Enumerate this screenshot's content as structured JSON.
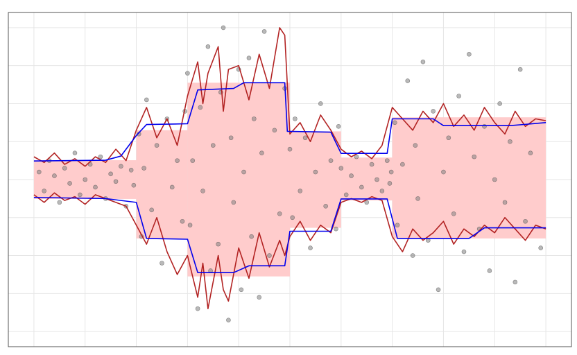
{
  "chart_data": {
    "type": "scatter",
    "xlim": [
      -0.05,
      1.05
    ],
    "xticks": [
      0,
      0.1,
      0.2,
      0.3,
      0.4,
      0.5,
      0.6,
      0.7,
      0.8,
      0.9,
      1
    ],
    "ylim": [
      -4.4,
      4.4
    ],
    "yticks": [
      -4,
      -3,
      -2,
      -1,
      0,
      1,
      2,
      3,
      4
    ],
    "grid": true,
    "color": "#808080",
    "band_color": "#ffcccc",
    "bands": [
      {
        "x": [
          0,
          0.2
        ],
        "lower": -0.51,
        "upper": 0.51
      },
      {
        "x": [
          0.2,
          0.3
        ],
        "lower": -1.55,
        "upper": 1.3
      },
      {
        "x": [
          0.3,
          0.5
        ],
        "lower": -2.55,
        "upper": 2.55
      },
      {
        "x": [
          0.5,
          0.6
        ],
        "lower": -1.27,
        "upper": 1.27
      },
      {
        "x": [
          0.6,
          0.7
        ],
        "lower": -0.55,
        "upper": 0.58
      },
      {
        "x": [
          0.7,
          1.0
        ],
        "lower": -1.55,
        "upper": 1.64
      }
    ],
    "x": [
      0.01,
      0.02,
      0.03,
      0.04,
      0.05,
      0.06,
      0.07,
      0.08,
      0.09,
      0.1,
      0.11,
      0.12,
      0.13,
      0.14,
      0.15,
      0.16,
      0.17,
      0.18,
      0.19,
      0.195,
      0.205,
      0.21,
      0.215,
      0.22,
      0.23,
      0.24,
      0.25,
      0.26,
      0.27,
      0.28,
      0.29,
      0.295,
      0.3,
      0.305,
      0.31,
      0.32,
      0.325,
      0.33,
      0.34,
      0.345,
      0.35,
      0.36,
      0.365,
      0.37,
      0.38,
      0.385,
      0.39,
      0.4,
      0.405,
      0.41,
      0.42,
      0.425,
      0.43,
      0.44,
      0.445,
      0.45,
      0.46,
      0.47,
      0.48,
      0.49,
      0.5,
      0.505,
      0.51,
      0.52,
      0.53,
      0.54,
      0.55,
      0.56,
      0.57,
      0.58,
      0.59,
      0.595,
      0.6,
      0.61,
      0.62,
      0.63,
      0.64,
      0.65,
      0.66,
      0.67,
      0.68,
      0.69,
      0.695,
      0.698,
      0.705,
      0.71,
      0.72,
      0.73,
      0.74,
      0.745,
      0.75,
      0.76,
      0.77,
      0.78,
      0.79,
      0.8,
      0.81,
      0.82,
      0.83,
      0.84,
      0.85,
      0.86,
      0.87,
      0.88,
      0.89,
      0.9,
      0.91,
      0.92,
      0.93,
      0.94,
      0.95,
      0.96,
      0.97,
      0.99
    ],
    "y": [
      0.2,
      -0.3,
      0.5,
      0.1,
      -0.6,
      0.3,
      -0.1,
      0.7,
      -0.4,
      0.0,
      0.4,
      -0.2,
      0.6,
      -0.5,
      0.15,
      -0.05,
      0.35,
      -0.7,
      0.25,
      -0.15,
      1.2,
      -1.5,
      0.3,
      2.1,
      -0.8,
      0.9,
      -2.2,
      1.6,
      -0.2,
      0.5,
      -1.1,
      1.8,
      2.8,
      -1.2,
      0.5,
      -3.4,
      1.9,
      -0.3,
      3.5,
      -2.4,
      0.9,
      -1.7,
      2.3,
      4.0,
      -3.7,
      1.1,
      -0.6,
      2.9,
      -2.9,
      0.2,
      3.2,
      -1.5,
      1.6,
      -3.1,
      0.7,
      3.9,
      -2.0,
      1.3,
      -0.9,
      2.4,
      0.8,
      -1.0,
      1.6,
      -0.3,
      1.1,
      -1.8,
      0.2,
      2.0,
      -0.7,
      0.5,
      -1.3,
      1.4,
      0.3,
      -0.4,
      0.1,
      0.6,
      -0.2,
      -0.6,
      0.4,
      0.0,
      -0.3,
      0.5,
      -0.1,
      0.2,
      1.5,
      -1.2,
      0.4,
      2.6,
      -2.0,
      0.9,
      -0.5,
      3.1,
      -1.6,
      1.8,
      -2.9,
      0.2,
      1.1,
      -0.9,
      2.2,
      -1.9,
      3.3,
      0.6,
      -1.3,
      1.4,
      -2.4,
      0.0,
      2.0,
      -0.6,
      1.0,
      -2.7,
      2.9,
      -1.1,
      0.7,
      -1.8
    ],
    "lines": [
      {
        "color": "#b22222",
        "x": [
          0,
          0.02,
          0.04,
          0.06,
          0.08,
          0.1,
          0.12,
          0.14,
          0.16,
          0.18,
          0.2,
          0.22,
          0.24,
          0.26,
          0.28,
          0.3,
          0.32,
          0.33,
          0.34,
          0.36,
          0.37,
          0.38,
          0.4,
          0.42,
          0.44,
          0.46,
          0.48,
          0.49,
          0.5,
          0.52,
          0.54,
          0.56,
          0.58,
          0.6,
          0.62,
          0.64,
          0.66,
          0.68,
          0.7,
          0.72,
          0.74,
          0.76,
          0.78,
          0.8,
          0.82,
          0.84,
          0.86,
          0.88,
          0.9,
          0.92,
          0.94,
          0.96,
          0.98,
          1.0
        ],
        "values": [
          0.6,
          0.45,
          0.7,
          0.4,
          0.55,
          0.35,
          0.6,
          0.45,
          0.8,
          0.5,
          1.3,
          1.9,
          1.1,
          1.6,
          0.9,
          2.2,
          3.1,
          2.0,
          2.8,
          3.5,
          1.8,
          2.9,
          3.0,
          2.1,
          3.3,
          2.4,
          4.0,
          3.8,
          1.2,
          1.5,
          1.0,
          1.7,
          1.3,
          0.8,
          0.6,
          0.75,
          0.55,
          0.9,
          1.9,
          1.6,
          1.3,
          1.8,
          1.5,
          2.0,
          1.4,
          1.7,
          1.3,
          1.9,
          1.5,
          1.2,
          1.8,
          1.4,
          1.6,
          1.55
        ]
      },
      {
        "color": "#b22222",
        "x": [
          0,
          0.02,
          0.04,
          0.06,
          0.08,
          0.1,
          0.12,
          0.14,
          0.16,
          0.18,
          0.2,
          0.22,
          0.24,
          0.26,
          0.28,
          0.3,
          0.32,
          0.33,
          0.34,
          0.36,
          0.37,
          0.38,
          0.4,
          0.42,
          0.44,
          0.46,
          0.48,
          0.49,
          0.5,
          0.52,
          0.54,
          0.56,
          0.58,
          0.6,
          0.62,
          0.64,
          0.66,
          0.68,
          0.7,
          0.72,
          0.74,
          0.76,
          0.78,
          0.8,
          0.82,
          0.84,
          0.86,
          0.88,
          0.9,
          0.92,
          0.94,
          0.96,
          0.98,
          1.0
        ],
        "values": [
          -0.4,
          -0.6,
          -0.35,
          -0.55,
          -0.45,
          -0.65,
          -0.4,
          -0.5,
          -0.6,
          -0.7,
          -1.2,
          -1.7,
          -1.0,
          -1.9,
          -2.5,
          -2.0,
          -3.1,
          -2.2,
          -3.4,
          -2.0,
          -2.9,
          -3.2,
          -1.8,
          -2.6,
          -1.4,
          -2.3,
          -1.6,
          -2.0,
          -1.5,
          -1.1,
          -1.6,
          -1.2,
          -1.4,
          -0.6,
          -0.5,
          -0.6,
          -0.45,
          -0.55,
          -1.5,
          -1.9,
          -1.3,
          -1.6,
          -1.4,
          -1.1,
          -1.7,
          -1.3,
          -1.5,
          -1.2,
          -1.4,
          -1.0,
          -1.3,
          -1.6,
          -1.2,
          -1.3
        ]
      },
      {
        "color": "#0000ee",
        "x": [
          0,
          0.14,
          0.17,
          0.2,
          0.22,
          0.3,
          0.32,
          0.39,
          0.41,
          0.49,
          0.495,
          0.58,
          0.6,
          0.69,
          0.7,
          0.78,
          0.8,
          0.93,
          1.0
        ],
        "values": [
          0.49,
          0.51,
          0.62,
          1.16,
          1.45,
          1.47,
          2.36,
          2.4,
          2.55,
          2.55,
          1.27,
          1.25,
          0.69,
          0.69,
          1.6,
          1.6,
          1.42,
          1.42,
          1.5
        ]
      },
      {
        "color": "#0000ee",
        "x": [
          0,
          0.14,
          0.2,
          0.22,
          0.3,
          0.32,
          0.39,
          0.42,
          0.49,
          0.5,
          0.58,
          0.6,
          0.69,
          0.71,
          0.85,
          0.88,
          1.0
        ],
        "values": [
          -0.47,
          -0.5,
          -0.6,
          -1.55,
          -1.57,
          -2.45,
          -2.45,
          -2.27,
          -2.27,
          -1.36,
          -1.36,
          -0.51,
          -0.51,
          -1.55,
          -1.55,
          -1.27,
          -1.27
        ]
      }
    ]
  }
}
